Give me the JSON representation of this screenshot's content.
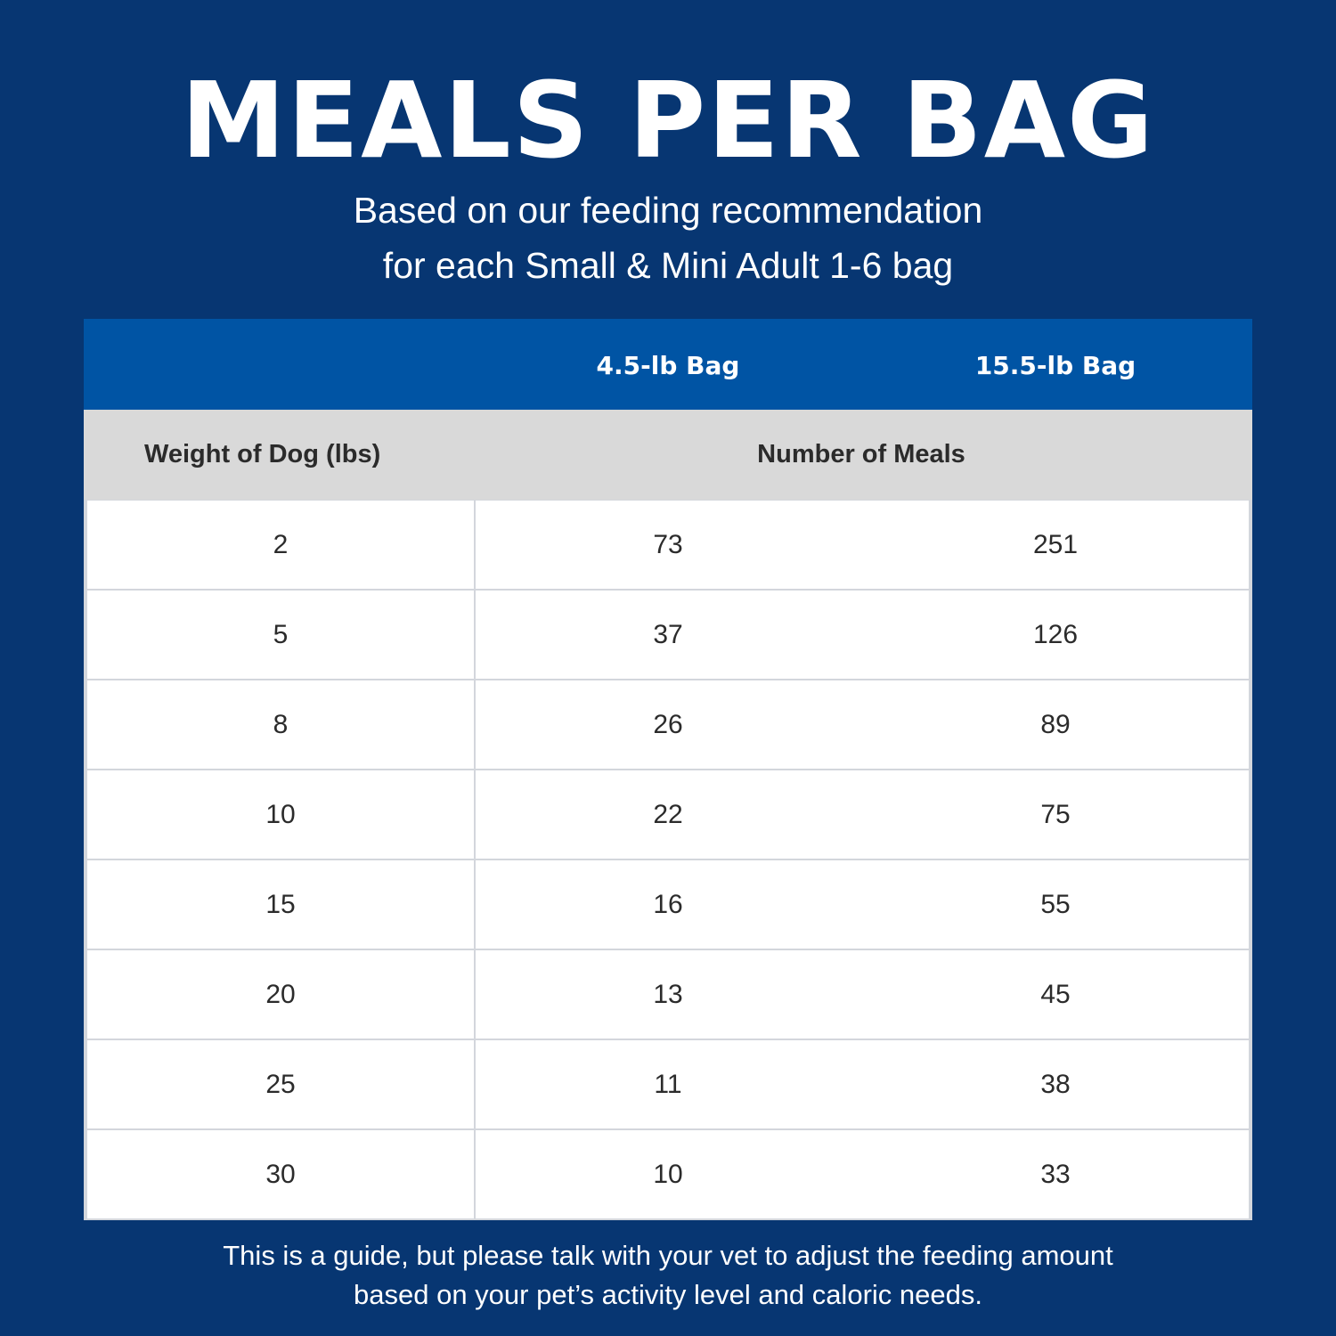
{
  "title": "MEALS PER BAG",
  "subtitle": [
    "Based on our feeding recommendation",
    "for each Small & Mini Adult 1-6 bag"
  ],
  "table": {
    "bag_headers": [
      "4.5-lb Bag",
      "15.5-lb Bag"
    ],
    "weight_header": "Weight of Dog (lbs)",
    "meals_header": "Number of Meals",
    "rows": [
      [
        "2",
        "73",
        "251"
      ],
      [
        "5",
        "37",
        "126"
      ],
      [
        "8",
        "26",
        "89"
      ],
      [
        "10",
        "22",
        "75"
      ],
      [
        "15",
        "16",
        "55"
      ],
      [
        "20",
        "13",
        "45"
      ],
      [
        "25",
        "11",
        "38"
      ],
      [
        "30",
        "10",
        "33"
      ]
    ]
  },
  "footer": [
    "This is a guide, but please talk with your vet to adjust the feeding amount",
    "based on your pet’s activity level and caloric needs."
  ],
  "colors": {
    "background": "#073672",
    "header": "#0054a4",
    "subheader": "#d9d9d9"
  }
}
